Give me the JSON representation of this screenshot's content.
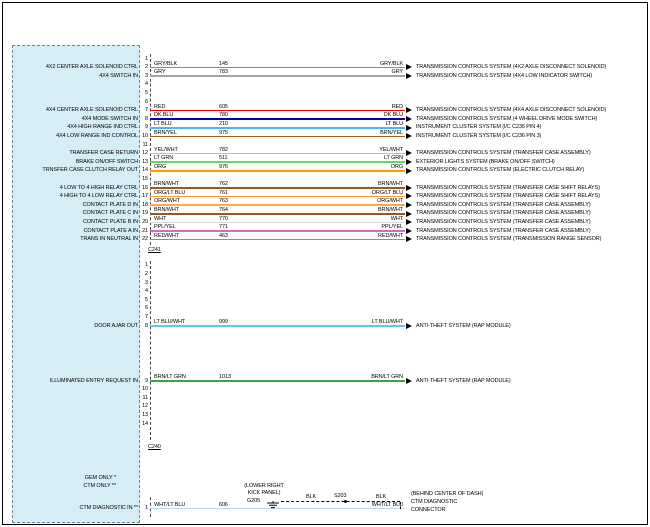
{
  "module_notes": [
    "GEM ONLY *",
    "CTM ONLY **"
  ],
  "connectors": [
    {
      "id": "C241",
      "label": "C241",
      "wires": [
        {
          "pin": "2",
          "module_label": "4X2 CENTER AXLE SOLENOID CTRL",
          "color": "GRY/BLK",
          "circuit": "145",
          "line_color": "#8a8a8a",
          "destination": "TRANSMISSION CONTROLS SYSTEM (4X2 AXLE DISCONNECT SOLENOID)"
        },
        {
          "pin": "3",
          "module_label": "4X4 SWITCH IN",
          "color": "GRY",
          "circuit": "783",
          "line_color": "#a3a3a3",
          "destination": "TRANSMISSION CONTROLS SYSTEM (4X4 LOW INDICATOR SWITCH)"
        },
        {
          "pin": "7",
          "module_label": "4X4 CENTER AXLE SOLENOID CTRL",
          "color": "RED",
          "circuit": "605",
          "line_color": "#f00000",
          "destination": "TRANSMISSION CONTROLS SYSTEM (4X4 AXLE DISCONNECT SOLENOID)"
        },
        {
          "pin": "8",
          "module_label": "4X4 MODE SWITCH IN",
          "color": "DK BLU",
          "circuit": "780",
          "line_color": "#0000a6",
          "destination": "TRANSMISSION CONTROLS SYSTEM (4 WHEEL DRIVE MODE SWITCH)"
        },
        {
          "pin": "9",
          "module_label": "4X4 HIGH RANGE IND CTRL",
          "color": "LT BLU",
          "circuit": "210",
          "line_color": "#4ab8ea",
          "destination": "INSTRUMENT CLUSTER SYSTEM (I/C C236 PIN 4)"
        },
        {
          "pin": "10",
          "module_label": "4X4 LOW RANGE IND CONTROL",
          "color": "BRN/YEL",
          "circuit": "975",
          "line_color": "#8f6b1e",
          "destination": "INSTRUMENT CLUSTER SYSTEM (I/C C236 PIN 3)"
        },
        {
          "pin": "12",
          "module_label": "TRANSFER CASE RETURN",
          "color": "YEL/WHT",
          "circuit": "782",
          "line_color": "#e0d000",
          "destination": "TRANSMISSION CONTROLS SYSTEM (TRANSFER CASE ASSEMBLY)"
        },
        {
          "pin": "13",
          "module_label": "BRAKE ON/OFF SWITCH",
          "color": "LT GRN",
          "circuit": "511",
          "line_color": "#63d663",
          "destination": "EXTERIOR LIGHTS SYSTEM (BRAKE ON/OFF SWITCH)"
        },
        {
          "pin": "14",
          "module_label": "TRNSFER CASE CLUTCH RELAY OUT",
          "color": "ORG",
          "circuit": "976",
          "line_color": "#ff9b00",
          "destination": "TRANSMISSION CONTROLS SYSTEM (ELECTRIC CLUTCH RELAY)"
        },
        {
          "pin": "16",
          "module_label": "4 LOW TO 4 HIGH RELAY CTRL",
          "color": "BRN/WHT",
          "circuit": "762",
          "line_color": "#99591c",
          "destination": "TRANSMISSION CONTROLS SYSTEM (TRANSFER CASE SHIFT RELAYS)"
        },
        {
          "pin": "17",
          "module_label": "4 HIGH TO 4 LOW RELAY CTRL",
          "color": "ORG/LT BLU",
          "circuit": "761",
          "line_color": "#ff9b2e",
          "destination": "TRANSMISSION CONTROLS SYSTEM (TRANSFER CASE SHIFT RELAYS)"
        },
        {
          "pin": "18",
          "module_label": "CONTACT PLATE D IN",
          "color": "ORG/WHT",
          "circuit": "763",
          "line_color": "#ffa64f",
          "destination": "TRANSMISSION CONTROLS SYSTEM (TRANSFER CASE ASSEMBLY)"
        },
        {
          "pin": "19",
          "module_label": "CONTACT PLATE C IN",
          "color": "BRN/WHT",
          "circuit": "764",
          "line_color": "#99591c",
          "destination": "TRANSMISSION CONTROLS SYSTEM (TRANSFER CASE ASSEMBLY)"
        },
        {
          "pin": "20",
          "module_label": "CONTACT PLATE B IN",
          "color": "WHT",
          "circuit": "770",
          "line_color": "#d9d9d9",
          "destination": "TRANSMISSION CONTROLS SYSTEM (TRANSFER CASE ASSEMBLY)"
        },
        {
          "pin": "21",
          "module_label": "CONTACT PLATE A IN",
          "color": "PPL/YEL",
          "circuit": "771",
          "line_color": "#d36ac2",
          "destination": "TRANSMISSION CONTROLS SYSTEM (TRANSFER CASE ASSEMBLY)"
        },
        {
          "pin": "22",
          "module_label": "TRANS IN NEUTRAL IN",
          "color": "RED/WHT",
          "circuit": "463",
          "line_color": "#ff5c5c",
          "destination": "TRANSMISSION CONTROLS SYSTEM (TRANSMISSION RANGE SENSOR)"
        }
      ]
    },
    {
      "id": "C240",
      "label": "C240",
      "wires": [
        {
          "pin": "8",
          "module_label": "DOOR AJAR OUT",
          "color": "LT BLU/WHT",
          "circuit": "999",
          "line_color": "#55cfe6",
          "destination": "ANTI-THEFT SYSTEM (RAP MODULE)"
        },
        {
          "pin": "9",
          "module_label": "ILLUMINATED ENTRY REQUEST IN",
          "color": "BRN/LT GRN",
          "circuit": "1013",
          "line_color": "#3da53d",
          "destination": "ANTI-THEFT SYSTEM (RAP MODULE)"
        }
      ]
    },
    {
      "id": "CTM",
      "label": "",
      "wires": [
        {
          "pin": "1",
          "module_label": "CTM DIAGNOSTIC IN **",
          "color": "WHT/LT BLU",
          "circuit": "606",
          "line_color": "#b3dcea",
          "destination": ""
        }
      ]
    }
  ],
  "ctm_branch": {
    "location_line1": "(LOWER RIGHT",
    "location_line2": "KICK PANEL)",
    "ground_id": "G205",
    "wire_color_left": "BLK",
    "splice_id": "S203",
    "wire_color_right": "BLK",
    "dest_line1": "(BEHIND CENTER OF DASH)",
    "dest_line2": "CTM DIAGNOSTIC",
    "dest_line3": "CONNECTOR"
  }
}
